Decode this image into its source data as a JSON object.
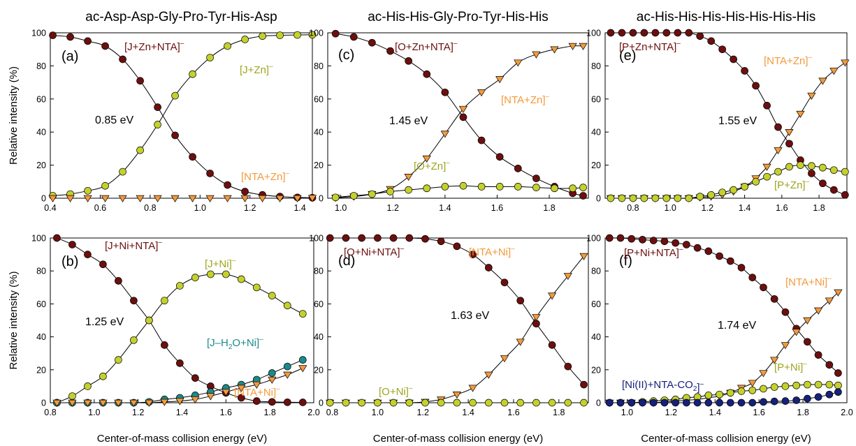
{
  "colors": {
    "complex": "#6b0f0f",
    "peptide": "#c4d12b",
    "nta": "#f39a3c",
    "water_loss": "#1c8a8a",
    "co2_loss": "#16217a"
  },
  "shared": {
    "ylabel": "Relative intensity (%)",
    "xlabel": "Center-of-mass collision energy (eV)"
  },
  "chart_data": [
    {
      "id": "a",
      "type": "line",
      "panel_label": "(a)",
      "title": "ac-Asp-Asp-Gly-Pro-Tyr-His-Asp",
      "xlim": [
        0.4,
        1.45
      ],
      "xticks": [
        "0.4",
        "0.6",
        "0.8",
        "1.0",
        "1.2",
        "1.4"
      ],
      "ylim": [
        0,
        100
      ],
      "yticks": [
        "0",
        "20",
        "40",
        "60",
        "80",
        "100"
      ],
      "show_ylabel": true,
      "show_xlabel": false,
      "threshold_label": "0.85 eV",
      "series": [
        {
          "name": "[J+Zn+NTA]",
          "charge": "–",
          "color": "#6b0f0f",
          "marker": "circle",
          "x": [
            0.41,
            0.48,
            0.55,
            0.62,
            0.69,
            0.76,
            0.83,
            0.9,
            0.97,
            1.04,
            1.11,
            1.18,
            1.25,
            1.32,
            1.39,
            1.45
          ],
          "y": [
            98.5,
            97.5,
            95,
            92,
            84,
            71,
            55,
            38,
            25,
            15,
            8,
            4,
            2,
            1,
            0.5,
            0.3
          ]
        },
        {
          "name": "[J+Zn]",
          "charge": "–",
          "color": "#c4d12b",
          "marker": "circle",
          "x": [
            0.41,
            0.48,
            0.55,
            0.62,
            0.69,
            0.76,
            0.83,
            0.9,
            0.97,
            1.04,
            1.11,
            1.18,
            1.25,
            1.32,
            1.39,
            1.45
          ],
          "y": [
            1.5,
            2.5,
            4.5,
            7.5,
            16,
            29,
            44.5,
            62,
            75,
            85,
            92,
            96,
            98,
            98.5,
            98.7,
            98.8
          ]
        },
        {
          "name": "[NTA+Zn]",
          "charge": "–",
          "color": "#f39a3c",
          "marker": "triangle",
          "x": [
            0.41,
            0.48,
            0.55,
            0.62,
            0.69,
            0.76,
            0.83,
            0.9,
            0.97,
            1.04,
            1.11,
            1.18,
            1.25,
            1.32,
            1.39,
            1.45
          ],
          "y": [
            0,
            0,
            0,
            0,
            0,
            0,
            0,
            0,
            0,
            0,
            0,
            0,
            0,
            0,
            0,
            0.2
          ]
        }
      ]
    },
    {
      "id": "c",
      "type": "line",
      "panel_label": "(c)",
      "title": "ac-His-His-Gly-Pro-Tyr-His-His",
      "xlim": [
        0.95,
        1.95
      ],
      "xticks": [
        "1.0",
        "1.2",
        "1.4",
        "1.6",
        "1.8"
      ],
      "ylim": [
        0,
        100
      ],
      "yticks": [
        "0",
        "20",
        "40",
        "60",
        "80",
        "100"
      ],
      "show_ylabel": false,
      "show_xlabel": false,
      "threshold_label": "1.45 eV",
      "series": [
        {
          "name": "[O+Zn+NTA]",
          "charge": "–",
          "color": "#6b0f0f",
          "marker": "circle",
          "x": [
            0.98,
            1.05,
            1.12,
            1.19,
            1.26,
            1.33,
            1.4,
            1.47,
            1.54,
            1.61,
            1.68,
            1.75,
            1.82,
            1.89,
            1.93
          ],
          "y": [
            99.5,
            97.5,
            94,
            89,
            83,
            75,
            64,
            49,
            35,
            25,
            18,
            12,
            7,
            3,
            1.5
          ]
        },
        {
          "name": "[NTA+Zn]",
          "charge": "–",
          "color": "#f39a3c",
          "marker": "triangle",
          "x": [
            0.98,
            1.05,
            1.12,
            1.19,
            1.26,
            1.33,
            1.4,
            1.47,
            1.54,
            1.61,
            1.68,
            1.75,
            1.82,
            1.89,
            1.93
          ],
          "y": [
            0.3,
            1,
            2.5,
            5.5,
            13,
            24,
            39,
            54,
            64,
            72,
            82,
            87,
            90,
            92,
            92
          ]
        },
        {
          "name": "[O+Zn]",
          "charge": "–",
          "color": "#c4d12b",
          "marker": "circle",
          "x": [
            0.98,
            1.05,
            1.12,
            1.19,
            1.26,
            1.33,
            1.4,
            1.47,
            1.54,
            1.61,
            1.68,
            1.75,
            1.82,
            1.89,
            1.93
          ],
          "y": [
            0.5,
            1.5,
            2.5,
            4,
            5,
            6,
            7,
            7.5,
            7,
            7,
            7,
            6.5,
            6,
            6,
            6.5
          ]
        }
      ]
    },
    {
      "id": "e",
      "type": "line",
      "panel_label": "(e)",
      "title": "ac-His-His-His-His-His-His-His",
      "xlim": [
        0.65,
        1.95
      ],
      "xticks": [
        "0.8",
        "1.0",
        "1.2",
        "1.4",
        "1.6",
        "1.8"
      ],
      "ylim": [
        0,
        100
      ],
      "yticks": [
        "0",
        "20",
        "40",
        "60",
        "80",
        "100"
      ],
      "show_ylabel": false,
      "show_xlabel": false,
      "threshold_label": "1.55 eV",
      "series": [
        {
          "name": "[P+Zn+NTA]",
          "charge": "–",
          "color": "#6b0f0f",
          "marker": "circle",
          "x": [
            0.68,
            0.74,
            0.8,
            0.86,
            0.92,
            0.98,
            1.04,
            1.1,
            1.16,
            1.22,
            1.28,
            1.34,
            1.4,
            1.46,
            1.52,
            1.58,
            1.64,
            1.7,
            1.76,
            1.82,
            1.88,
            1.94
          ],
          "y": [
            100,
            100,
            100,
            100,
            100,
            100,
            100,
            100,
            98,
            95,
            90,
            84,
            77,
            68,
            56,
            43,
            33,
            23,
            15,
            9,
            5,
            2
          ]
        },
        {
          "name": "[NTA+Zn]",
          "charge": "–",
          "color": "#f39a3c",
          "marker": "triangle",
          "x": [
            0.68,
            0.74,
            0.8,
            0.86,
            0.92,
            0.98,
            1.04,
            1.1,
            1.16,
            1.22,
            1.28,
            1.34,
            1.4,
            1.46,
            1.52,
            1.58,
            1.64,
            1.7,
            1.76,
            1.82,
            1.88,
            1.94
          ],
          "y": [
            0,
            0,
            0,
            0,
            0,
            0,
            0,
            0,
            0.5,
            1,
            2,
            4,
            7,
            12,
            19,
            29,
            40,
            51,
            62,
            71,
            77,
            82
          ]
        },
        {
          "name": "[P+Zn]",
          "charge": "–",
          "color": "#c4d12b",
          "marker": "circle",
          "x": [
            0.68,
            0.74,
            0.8,
            0.86,
            0.92,
            0.98,
            1.04,
            1.1,
            1.16,
            1.22,
            1.28,
            1.34,
            1.4,
            1.46,
            1.52,
            1.58,
            1.64,
            1.7,
            1.76,
            1.82,
            1.88,
            1.94
          ],
          "y": [
            0,
            0,
            0,
            0,
            0,
            0,
            0,
            0,
            1,
            2,
            3.5,
            5,
            7,
            10,
            13,
            16,
            19,
            20,
            19.5,
            18.5,
            17,
            16
          ]
        }
      ]
    },
    {
      "id": "b",
      "type": "line",
      "panel_label": "(b)",
      "title": "",
      "xlim": [
        0.8,
        2.0
      ],
      "xticks": [
        "0.8",
        "1.0",
        "1.2",
        "1.4",
        "1.6",
        "1.8",
        "2.0"
      ],
      "ylim": [
        0,
        100
      ],
      "yticks": [
        "0",
        "20",
        "40",
        "60",
        "80",
        "100"
      ],
      "show_ylabel": true,
      "show_xlabel": true,
      "threshold_label": "1.25 eV",
      "series": [
        {
          "name": "[J+Ni+NTA]",
          "charge": "–",
          "color": "#6b0f0f",
          "marker": "circle",
          "x": [
            0.83,
            0.9,
            0.97,
            1.04,
            1.11,
            1.18,
            1.25,
            1.32,
            1.39,
            1.46,
            1.53,
            1.6,
            1.67,
            1.74,
            1.81,
            1.88,
            1.95
          ],
          "y": [
            100,
            96,
            90,
            84,
            74,
            62,
            50,
            35,
            24,
            15,
            10,
            6,
            3,
            1,
            0.5,
            0.3,
            0.2
          ]
        },
        {
          "name": "[J+Ni]",
          "charge": "–",
          "color": "#c4d12b",
          "marker": "circle",
          "x": [
            0.83,
            0.9,
            0.97,
            1.04,
            1.11,
            1.18,
            1.25,
            1.32,
            1.39,
            1.46,
            1.53,
            1.6,
            1.67,
            1.74,
            1.81,
            1.88,
            1.95
          ],
          "y": [
            0,
            4,
            10,
            16,
            26,
            38,
            50,
            62,
            71,
            76,
            78,
            78,
            75,
            70,
            65,
            59,
            54
          ]
        },
        {
          "name": "[J–H2O+Ni]",
          "charge": "–",
          "color": "#1c8a8a",
          "marker": "circle",
          "x": [
            0.83,
            0.9,
            0.97,
            1.04,
            1.11,
            1.18,
            1.25,
            1.32,
            1.39,
            1.46,
            1.53,
            1.6,
            1.67,
            1.74,
            1.81,
            1.88,
            1.95
          ],
          "y": [
            0,
            0,
            0,
            0,
            0,
            0,
            0.5,
            2,
            3,
            4.5,
            6.5,
            9,
            11,
            14,
            18,
            22,
            26
          ]
        },
        {
          "name": "[NTA+Ni]",
          "charge": "–",
          "color": "#f39a3c",
          "marker": "triangle",
          "x": [
            0.83,
            0.9,
            0.97,
            1.04,
            1.11,
            1.18,
            1.25,
            1.32,
            1.39,
            1.46,
            1.53,
            1.6,
            1.67,
            1.74,
            1.81,
            1.88,
            1.95
          ],
          "y": [
            0,
            0,
            0,
            0,
            0,
            0,
            0,
            0.5,
            1,
            2,
            4,
            6.5,
            9,
            11,
            14,
            17,
            21
          ]
        }
      ]
    },
    {
      "id": "d",
      "type": "line",
      "panel_label": "(d)",
      "title": "",
      "xlim": [
        0.78,
        1.93
      ],
      "xticks": [
        "0.8",
        "1.0",
        "1.2",
        "1.4",
        "1.6",
        "1.8"
      ],
      "ylim": [
        0,
        100
      ],
      "yticks": [
        "0",
        "20",
        "40",
        "60",
        "80",
        "100"
      ],
      "show_ylabel": false,
      "show_xlabel": true,
      "threshold_label": "1.63 eV",
      "series": [
        {
          "name": "[O+Ni+NTA]",
          "charge": "–",
          "color": "#6b0f0f",
          "marker": "circle",
          "x": [
            0.79,
            0.86,
            0.93,
            1.0,
            1.07,
            1.14,
            1.21,
            1.28,
            1.35,
            1.42,
            1.49,
            1.56,
            1.63,
            1.7,
            1.77,
            1.84,
            1.91
          ],
          "y": [
            100,
            100,
            100,
            100,
            100,
            100,
            99.5,
            98,
            95,
            90,
            82,
            73,
            62,
            48,
            35,
            22,
            11
          ]
        },
        {
          "name": "[NTA+Ni]",
          "charge": "–",
          "color": "#f39a3c",
          "marker": "triangle",
          "x": [
            0.79,
            0.86,
            0.93,
            1.0,
            1.07,
            1.14,
            1.21,
            1.28,
            1.35,
            1.42,
            1.49,
            1.56,
            1.63,
            1.7,
            1.77,
            1.84,
            1.91
          ],
          "y": [
            0,
            0,
            0,
            0,
            0,
            0,
            0.5,
            2,
            5,
            9,
            17,
            27,
            37,
            52,
            65,
            77,
            89
          ]
        },
        {
          "name": "[O+Ni]",
          "charge": "–",
          "color": "#c4d12b",
          "marker": "circle",
          "x": [
            0.79,
            0.86,
            0.93,
            1.0,
            1.07,
            1.14,
            1.21,
            1.28,
            1.35,
            1.42,
            1.49,
            1.56,
            1.63,
            1.7,
            1.77,
            1.84,
            1.91
          ],
          "y": [
            0,
            0,
            0,
            0,
            0,
            0,
            0,
            0,
            0,
            0,
            0,
            0,
            0,
            0,
            0,
            0,
            0
          ]
        }
      ]
    },
    {
      "id": "f",
      "type": "line",
      "panel_label": "(f)",
      "title": "",
      "xlim": [
        0.9,
        2.0
      ],
      "xticks": [
        "1.0",
        "1.2",
        "1.4",
        "1.6",
        "1.8",
        "2.0"
      ],
      "ylim": [
        0,
        100
      ],
      "yticks": [
        "0",
        "20",
        "40",
        "60",
        "80",
        "100"
      ],
      "show_ylabel": false,
      "show_xlabel": true,
      "threshold_label": "1.74 eV",
      "series": [
        {
          "name": "[P+Ni+NTA]",
          "charge": "–",
          "color": "#6b0f0f",
          "marker": "circle",
          "x": [
            0.92,
            0.97,
            1.02,
            1.07,
            1.12,
            1.17,
            1.22,
            1.27,
            1.32,
            1.37,
            1.42,
            1.47,
            1.52,
            1.57,
            1.62,
            1.67,
            1.72,
            1.77,
            1.82,
            1.87,
            1.92,
            1.96
          ],
          "y": [
            100,
            100,
            99.5,
            99,
            98.5,
            98,
            97,
            96,
            94,
            92,
            89,
            86,
            82,
            76,
            70,
            63,
            55,
            45,
            37,
            29,
            23,
            18
          ]
        },
        {
          "name": "[NTA+Ni]",
          "charge": "–",
          "color": "#f39a3c",
          "marker": "triangle",
          "x": [
            0.92,
            0.97,
            1.02,
            1.07,
            1.12,
            1.17,
            1.22,
            1.27,
            1.32,
            1.37,
            1.42,
            1.47,
            1.52,
            1.57,
            1.62,
            1.67,
            1.72,
            1.77,
            1.82,
            1.87,
            1.92,
            1.96
          ],
          "y": [
            0,
            0,
            0,
            0,
            0,
            0.5,
            1,
            1.5,
            2,
            3,
            4,
            6,
            9,
            12,
            18,
            26,
            35,
            43,
            50,
            56,
            62,
            67
          ]
        },
        {
          "name": "[P+Ni]",
          "charge": "–",
          "color": "#c4d12b",
          "marker": "circle",
          "x": [
            0.92,
            0.97,
            1.02,
            1.07,
            1.12,
            1.17,
            1.22,
            1.27,
            1.32,
            1.37,
            1.42,
            1.47,
            1.52,
            1.57,
            1.62,
            1.67,
            1.72,
            1.77,
            1.82,
            1.87,
            1.92,
            1.96
          ],
          "y": [
            0,
            0,
            0,
            0.5,
            1,
            1.5,
            2,
            3,
            3.5,
            4.5,
            5,
            6,
            7,
            7.5,
            8.5,
            9.5,
            10,
            10.5,
            11,
            11,
            11,
            10.5
          ]
        },
        {
          "name": "[Ni(II)+NTA-CO2]",
          "charge": "–",
          "color": "#16217a",
          "marker": "circle",
          "x": [
            0.92,
            0.97,
            1.02,
            1.07,
            1.12,
            1.17,
            1.22,
            1.27,
            1.32,
            1.37,
            1.42,
            1.47,
            1.52,
            1.57,
            1.62,
            1.67,
            1.72,
            1.77,
            1.82,
            1.87,
            1.92,
            1.96
          ],
          "y": [
            0,
            0,
            0,
            0,
            0,
            0,
            0,
            0,
            0,
            0,
            0,
            0,
            0,
            0,
            0.5,
            0.8,
            1,
            1.5,
            2.5,
            3.5,
            5,
            6.5
          ]
        }
      ]
    }
  ]
}
